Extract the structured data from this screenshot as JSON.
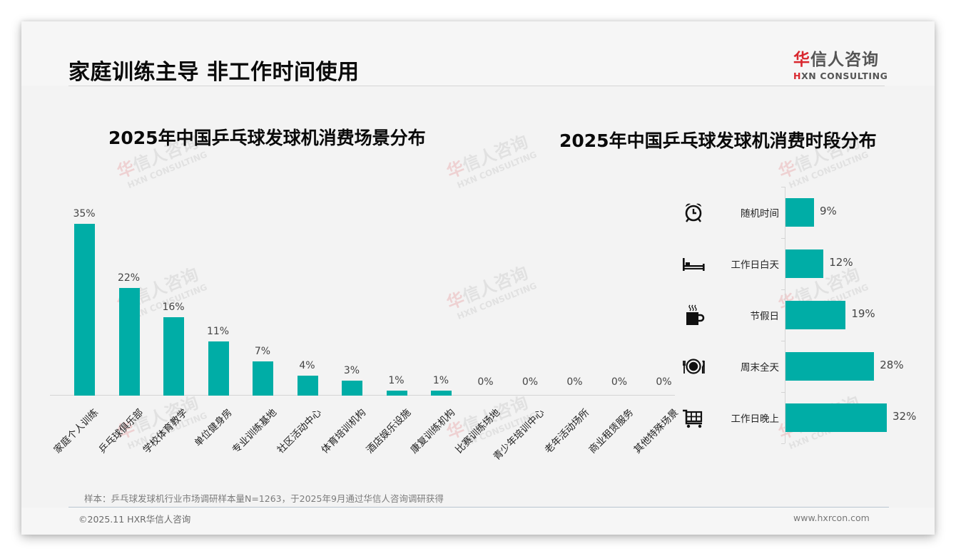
{
  "header": {
    "title": "家庭训练主导 非工作时间使用",
    "logo": {
      "cn_accent": "华",
      "cn_rest": "信人咨询",
      "en_accent": "H",
      "en_rest": "XN CONSULTING"
    }
  },
  "watermark": {
    "cn_accent": "华",
    "cn_rest": "信人咨询",
    "en": "HXN CONSULTING"
  },
  "colors": {
    "bar": "#00ada6",
    "accent_red": "#d9272e",
    "background": "#f3f3f3"
  },
  "chart_data": [
    {
      "type": "bar",
      "orientation": "vertical",
      "title": "2025年中国乒乓球发球机消费场景分布",
      "xlabel": "",
      "ylabel": "",
      "grid": false,
      "legend": null,
      "value_format": "percent",
      "ylim": [
        0,
        35
      ],
      "categories": [
        "家庭个人训练",
        "乒乓球俱乐部",
        "学校体育教学",
        "单位健身房",
        "专业训练基地",
        "社区活动中心",
        "体育培训机构",
        "酒店娱乐设施",
        "康复训练机构",
        "比赛训练场地",
        "青少年培训中心",
        "老年活动场所",
        "商业租赁服务",
        "其他特殊场景"
      ],
      "values": [
        35,
        22,
        16,
        11,
        7,
        4,
        3,
        1,
        1,
        0,
        0,
        0,
        0,
        0
      ],
      "labels": [
        "35%",
        "22%",
        "16%",
        "11%",
        "7%",
        "4%",
        "3%",
        "1%",
        "1%",
        "0%",
        "0%",
        "0%",
        "0%",
        "0%"
      ]
    },
    {
      "type": "bar",
      "orientation": "horizontal",
      "title": "2025年中国乒乓球发球机消费时段分布",
      "xlabel": "",
      "ylabel": "",
      "grid": false,
      "legend": null,
      "value_format": "percent",
      "xlim": [
        0,
        35
      ],
      "categories": [
        "随机时间",
        "工作日白天",
        "节假日",
        "周末全天",
        "工作日晚上"
      ],
      "values": [
        9,
        12,
        19,
        28,
        32
      ],
      "labels": [
        "9%",
        "12%",
        "19%",
        "28%",
        "32%"
      ],
      "icons": [
        "alarm-clock-icon",
        "bed-icon",
        "coffee-cup-icon",
        "plate-cutlery-icon",
        "shopping-cart-icon"
      ]
    }
  ],
  "footer": {
    "note": "样本：乒乓球发球机行业市场调研样本量N=1263，于2025年9月通过华信人咨询调研获得",
    "copyright": "©2025.11 HXR华信人咨询",
    "website": "www.hxrcon.com"
  }
}
